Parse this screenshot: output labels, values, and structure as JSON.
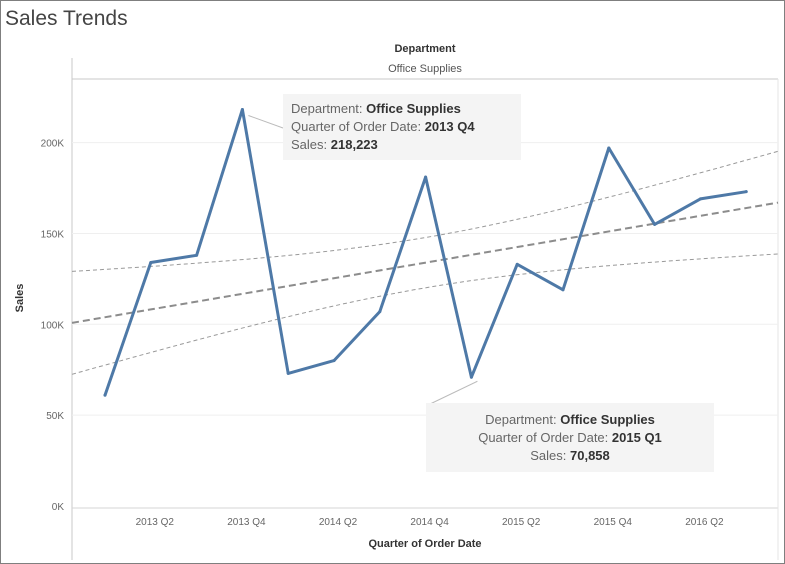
{
  "title": "Sales Trends",
  "column_header": "Department",
  "column_value": "Office Supplies",
  "chart_data": {
    "type": "line",
    "title": "Sales Trends",
    "xlabel": "Quarter of Order Date",
    "ylabel": "Sales",
    "ylim": [
      0,
      235000
    ],
    "y_ticks": [
      "0K",
      "50K",
      "100K",
      "150K",
      "200K"
    ],
    "x_tick_labels": [
      "2013 Q2",
      "2013 Q4",
      "2014 Q2",
      "2014 Q4",
      "2015 Q2",
      "2015 Q4",
      "2016 Q2"
    ],
    "categories": [
      "2013 Q1",
      "2013 Q2",
      "2013 Q3",
      "2013 Q4",
      "2014 Q1",
      "2014 Q2",
      "2014 Q3",
      "2014 Q4",
      "2015 Q1",
      "2015 Q2",
      "2015 Q3",
      "2015 Q4",
      "2016 Q1",
      "2016 Q2",
      "2016 Q3"
    ],
    "series": [
      {
        "name": "Office Supplies",
        "color": "#4e79a7",
        "values": [
          61000,
          134000,
          138000,
          218223,
          73000,
          80000,
          107000,
          181000,
          70858,
          133000,
          119000,
          197000,
          155000,
          169000,
          173000
        ]
      }
    ],
    "trend_line": {
      "style": "dashed",
      "color": "#999999"
    },
    "grid": "horizontal"
  },
  "tooltips": [
    {
      "dept_label": "Department:",
      "dept_value": "Office Supplies",
      "quarter_label": "Quarter of Order Date:",
      "quarter_value": "2013 Q4",
      "sales_label": "Sales:",
      "sales_value": "218,223"
    },
    {
      "dept_label": "Department:",
      "dept_value": "Office Supplies",
      "quarter_label": "Quarter of Order Date:",
      "quarter_value": "2015 Q1",
      "sales_label": "Sales:",
      "sales_value": "70,858"
    }
  ]
}
